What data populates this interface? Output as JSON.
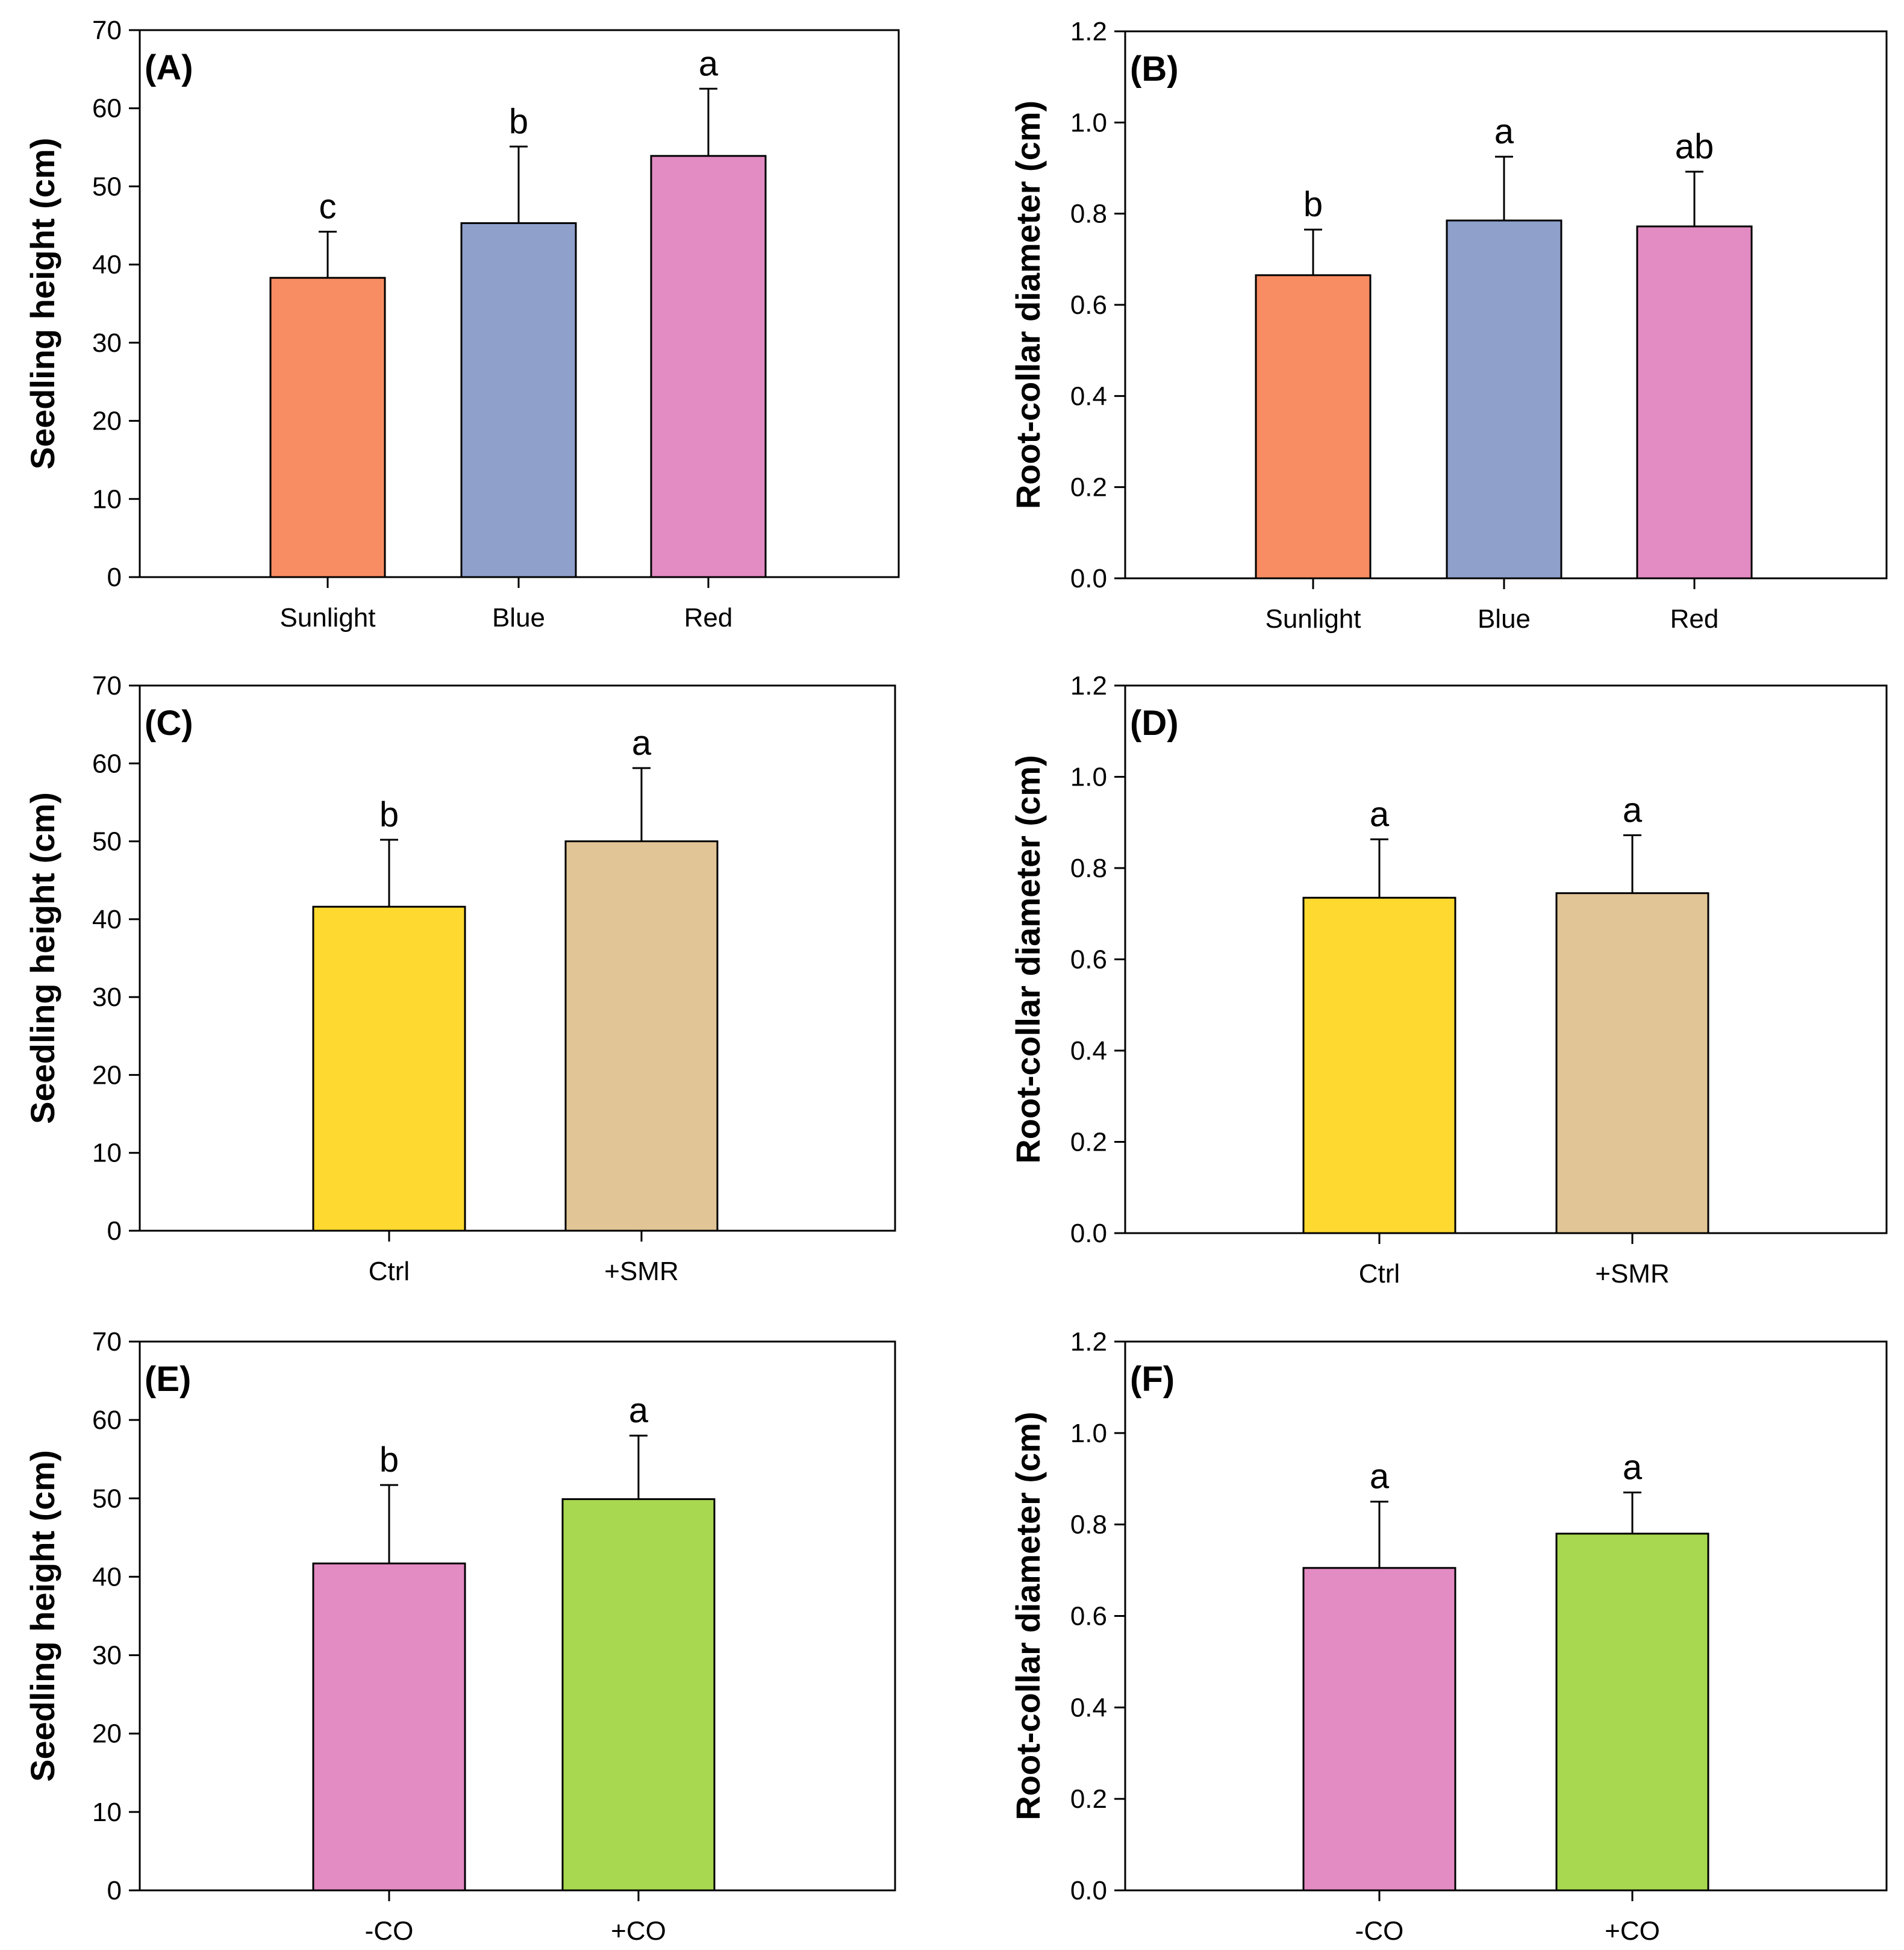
{
  "figure": {
    "description": "Six-panel bar chart figure"
  },
  "chart_data": [
    {
      "id": "A",
      "type": "bar",
      "panel_label": "(A)",
      "ylabel": "Seedling height (cm)",
      "xlabel": "",
      "ylim": [
        0,
        70
      ],
      "yticks": [
        0,
        10,
        20,
        30,
        40,
        50,
        60,
        70
      ],
      "ytick_labels": [
        "0",
        "10",
        "20",
        "30",
        "40",
        "50",
        "60",
        "70"
      ],
      "categories": [
        "Sunlight",
        "Blue",
        "Red"
      ],
      "values": [
        38.3,
        45.3,
        53.9
      ],
      "errors": [
        5.9,
        9.8,
        8.6
      ],
      "letters": [
        "c",
        "b",
        "a"
      ],
      "colors": [
        "#f88c62",
        "#8fa0cb",
        "#e38bc3"
      ]
    },
    {
      "id": "B",
      "type": "bar",
      "panel_label": "(B)",
      "ylabel": "Root-collar diameter (cm)",
      "xlabel": "",
      "ylim": [
        0,
        1.2
      ],
      "yticks": [
        0,
        0.2,
        0.4,
        0.6,
        0.8,
        1.0,
        1.2
      ],
      "ytick_labels": [
        "0.0",
        "0.2",
        "0.4",
        "0.6",
        "0.8",
        "1.0",
        "1.2"
      ],
      "categories": [
        "Sunlight",
        "Blue",
        "Red"
      ],
      "values": [
        0.665,
        0.785,
        0.772
      ],
      "errors": [
        0.1,
        0.14,
        0.12
      ],
      "letters": [
        "b",
        "a",
        "ab"
      ],
      "colors": [
        "#f88c62",
        "#8fa0cb",
        "#e38bc3"
      ]
    },
    {
      "id": "C",
      "type": "bar",
      "panel_label": "(C)",
      "ylabel": "Seedling height (cm)",
      "xlabel": "",
      "ylim": [
        0,
        70
      ],
      "yticks": [
        0,
        10,
        20,
        30,
        40,
        50,
        60,
        70
      ],
      "ytick_labels": [
        "0",
        "10",
        "20",
        "30",
        "40",
        "50",
        "60",
        "70"
      ],
      "categories": [
        "Ctrl",
        "+SMR"
      ],
      "values": [
        41.6,
        50.0
      ],
      "errors": [
        8.6,
        9.4
      ],
      "letters": [
        "b",
        "a"
      ],
      "colors": [
        "#fed92f",
        "#e2c596"
      ]
    },
    {
      "id": "D",
      "type": "bar",
      "panel_label": "(D)",
      "ylabel": "Root-collar diameter (cm)",
      "xlabel": "",
      "ylim": [
        0,
        1.2
      ],
      "yticks": [
        0,
        0.2,
        0.4,
        0.6,
        0.8,
        1.0,
        1.2
      ],
      "ytick_labels": [
        "0.0",
        "0.2",
        "0.4",
        "0.6",
        "0.8",
        "1.0",
        "1.2"
      ],
      "categories": [
        "Ctrl",
        "+SMR"
      ],
      "values": [
        0.735,
        0.745
      ],
      "errors": [
        0.128,
        0.127
      ],
      "letters": [
        "a",
        "a"
      ],
      "colors": [
        "#fed92f",
        "#e2c596"
      ]
    },
    {
      "id": "E",
      "type": "bar",
      "panel_label": "(E)",
      "ylabel": "Seedling height (cm)",
      "xlabel": "",
      "ylim": [
        0,
        70
      ],
      "yticks": [
        0,
        10,
        20,
        30,
        40,
        50,
        60,
        70
      ],
      "ytick_labels": [
        "0",
        "10",
        "20",
        "30",
        "40",
        "50",
        "60",
        "70"
      ],
      "categories": [
        "-CO",
        "+CO"
      ],
      "values": [
        41.7,
        49.9
      ],
      "errors": [
        10.0,
        8.1
      ],
      "letters": [
        "b",
        "a"
      ],
      "colors": [
        "#e38bc3",
        "#a8d84f"
      ]
    },
    {
      "id": "F",
      "type": "bar",
      "panel_label": "(F)",
      "ylabel": "Root-collar diameter (cm)",
      "xlabel": "",
      "ylim": [
        0,
        1.2
      ],
      "yticks": [
        0,
        0.2,
        0.4,
        0.6,
        0.8,
        1.0,
        1.2
      ],
      "ytick_labels": [
        "0.0",
        "0.2",
        "0.4",
        "0.6",
        "0.8",
        "1.0",
        "1.2"
      ],
      "categories": [
        "-CO",
        "+CO"
      ],
      "values": [
        0.705,
        0.78
      ],
      "errors": [
        0.145,
        0.09
      ],
      "letters": [
        "a",
        "a"
      ],
      "colors": [
        "#e38bc3",
        "#a8d84f"
      ]
    }
  ]
}
